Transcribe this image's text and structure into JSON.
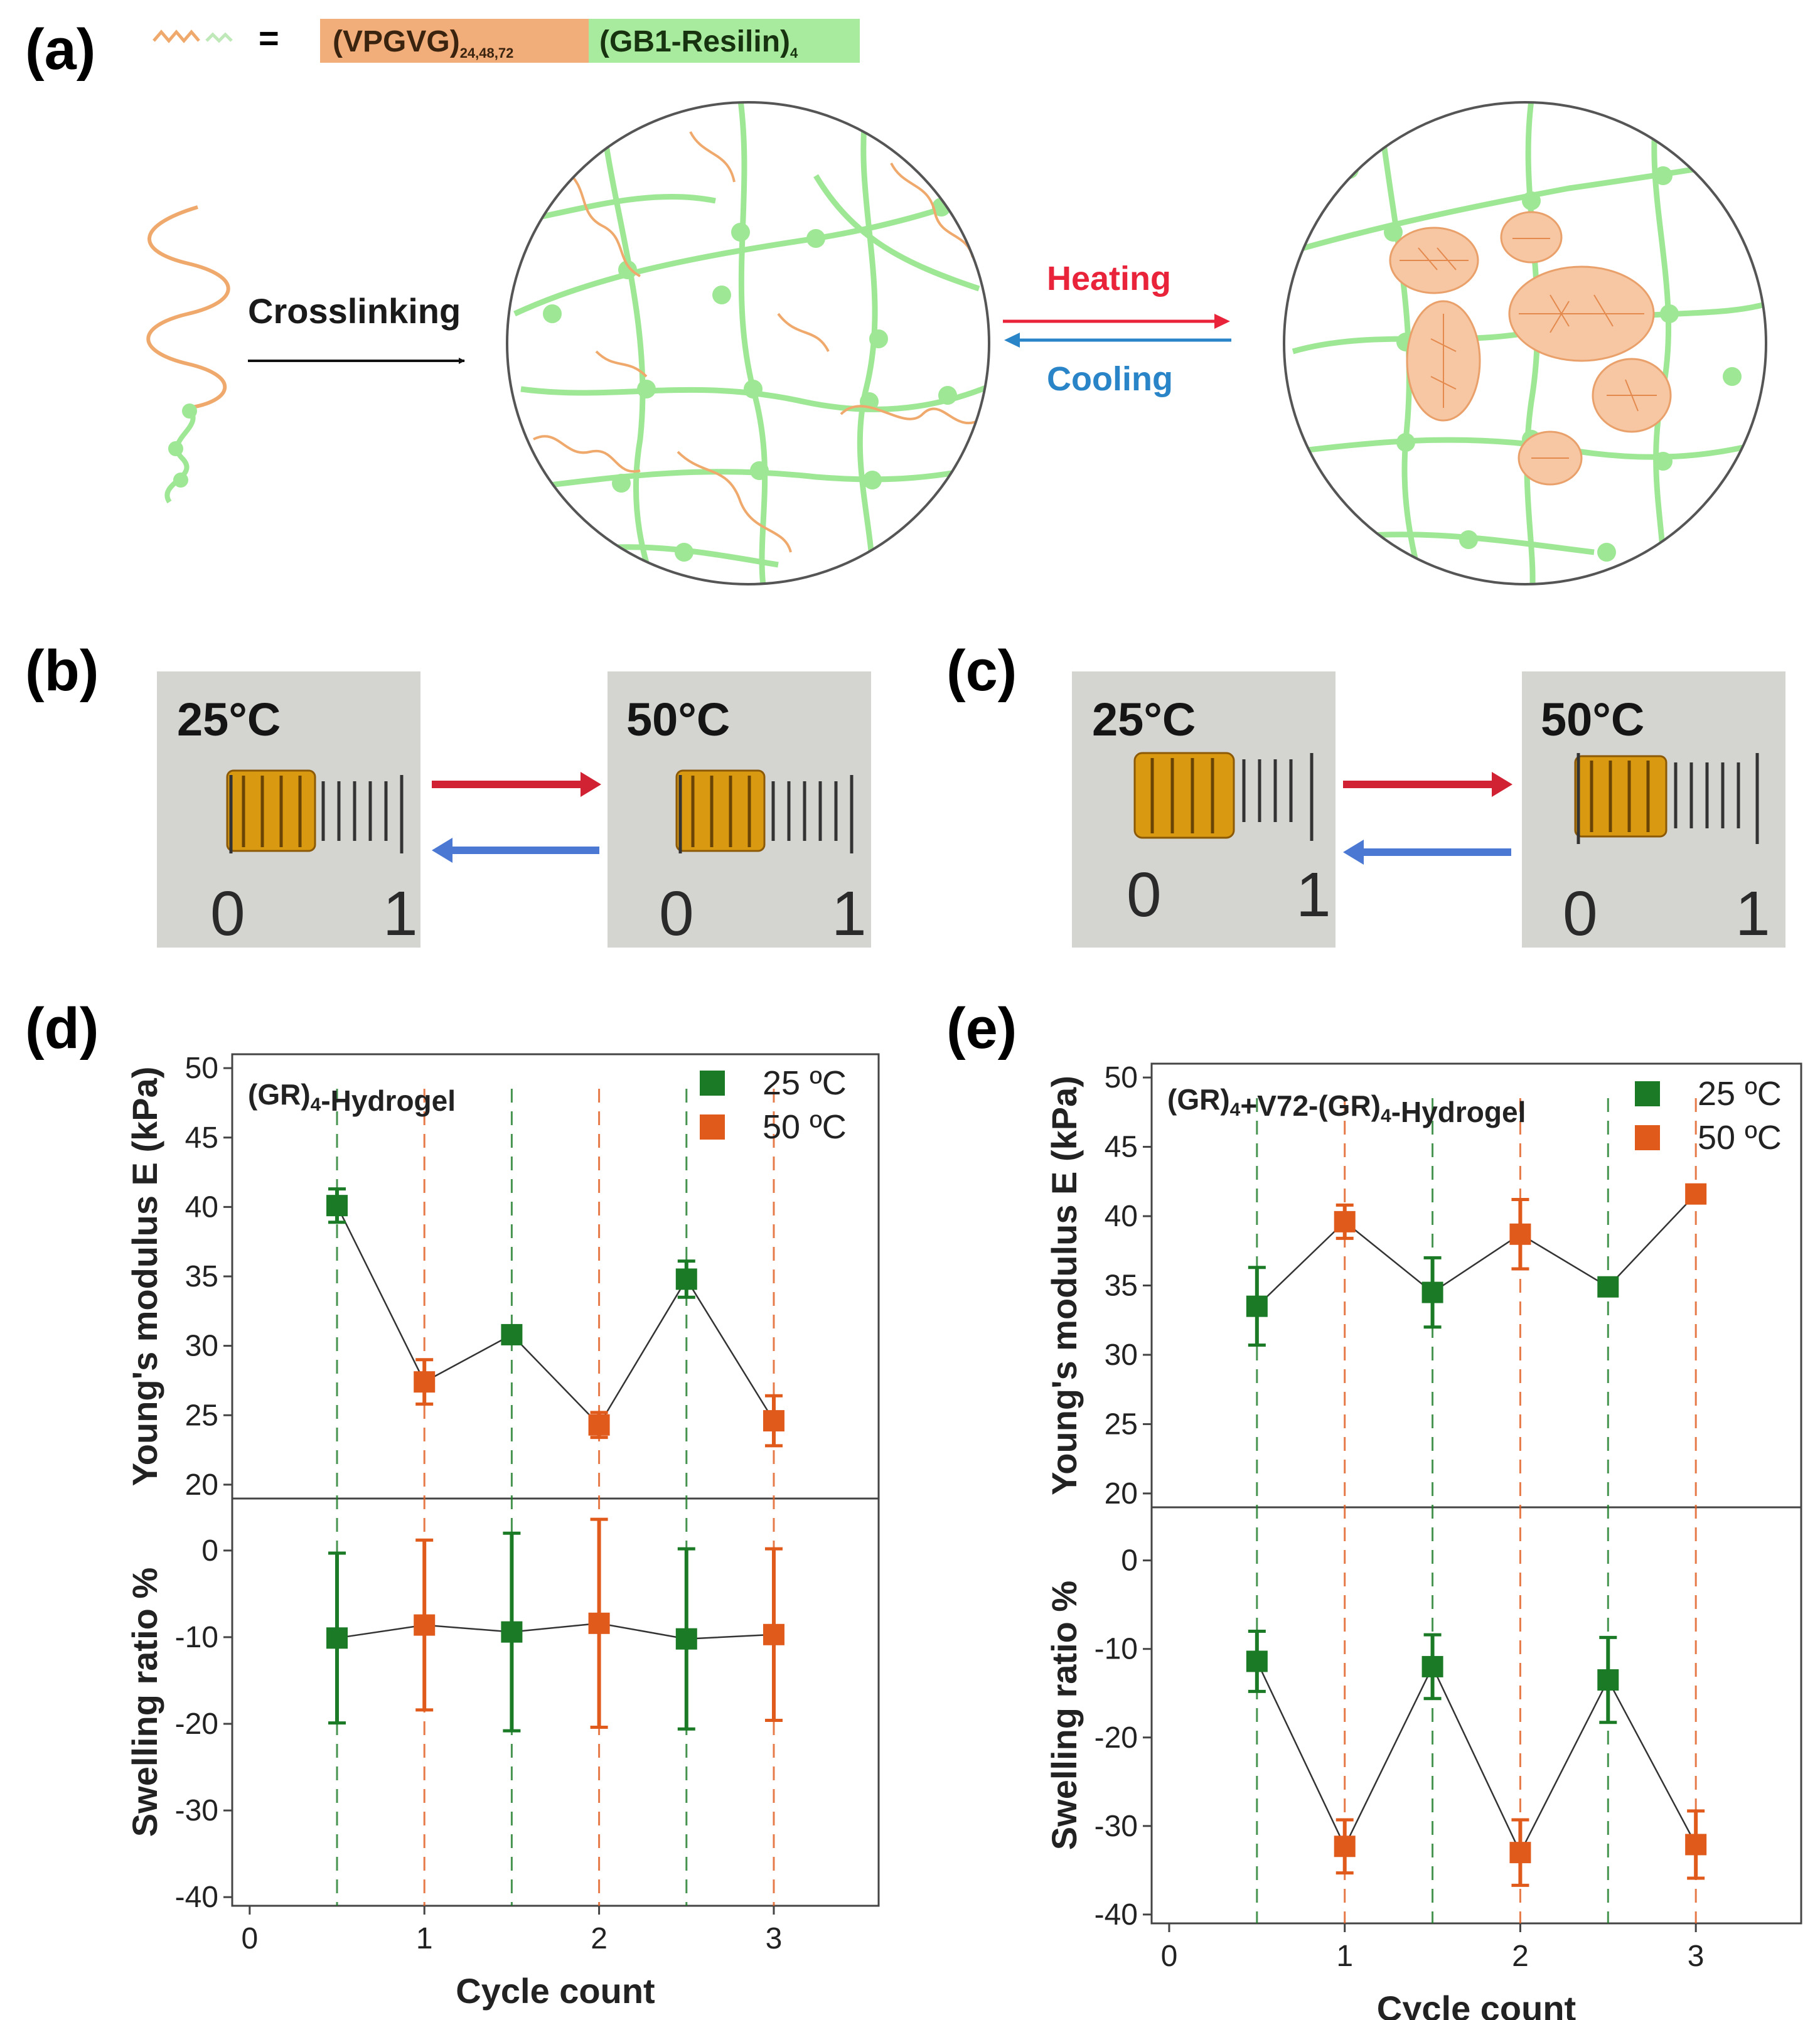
{
  "panel_labels": {
    "a": "(a)",
    "b": "(b)",
    "c": "(c)",
    "d": "(d)",
    "e": "(e)"
  },
  "schematic": {
    "equals": "=",
    "block_vpgvg": "(VPGVG)",
    "block_vpgvg_sub": "24,48,72",
    "block_gb1": "(GB1-Resilin)",
    "block_gb1_sub": "4",
    "crosslinking": "Crosslinking",
    "heating": "Heating",
    "cooling": "Cooling",
    "colors": {
      "vpgvg": "#f0a96c",
      "gb1": "#8fe08a",
      "heating": "#e8233a",
      "cooling": "#2a85c8",
      "net": "#9ee895",
      "aggregate": "#f6c7a2"
    }
  },
  "photos": {
    "b": {
      "left_temp": "25°C",
      "right_temp": "50°C",
      "zero": "0",
      "one": "1"
    },
    "c": {
      "left_temp": "25°C",
      "right_temp": "50°C",
      "zero": "0",
      "one": "1"
    },
    "arrow_colors": {
      "heat": "#d12233",
      "cool": "#4b78d2"
    }
  },
  "chart_data": [
    {
      "panel": "d",
      "title": "(GR)4-Hydrogel",
      "xlabel": "Cycle count",
      "x_ticks": [
        "0",
        "1",
        "2",
        "3"
      ],
      "xlim": [
        -0.1,
        3.6
      ],
      "legend": [
        {
          "label": "25 ºC",
          "color": "#1a7a25"
        },
        {
          "label": "50 ºC",
          "color": "#e05a1c"
        }
      ],
      "top": {
        "type": "line",
        "ylabel": "Young's modulus E (kPa)",
        "ylim": [
          19,
          51
        ],
        "y_ticks": [
          20,
          25,
          30,
          35,
          40,
          45,
          50
        ],
        "x": [
          0.5,
          1,
          1.5,
          2,
          2.5,
          3
        ],
        "y": [
          40.1,
          27.4,
          30.8,
          24.3,
          34.8,
          24.6
        ],
        "err": [
          1.2,
          1.6,
          0.6,
          0.9,
          1.3,
          1.8
        ],
        "temp": [
          "25",
          "50",
          "25",
          "50",
          "25",
          "50"
        ]
      },
      "bottom": {
        "type": "line",
        "ylabel": "Swelling ratio %",
        "ylim": [
          -41,
          6
        ],
        "y_ticks": [
          -40,
          -30,
          -20,
          -10,
          0
        ],
        "x": [
          0.5,
          1,
          1.5,
          2,
          2.5,
          3
        ],
        "y": [
          -10.1,
          -8.6,
          -9.4,
          -8.4,
          -10.2,
          -9.7
        ],
        "err": [
          9.8,
          9.8,
          11.4,
          12.0,
          10.4,
          9.9
        ],
        "temp": [
          "25",
          "50",
          "25",
          "50",
          "25",
          "50"
        ]
      }
    },
    {
      "panel": "e",
      "title": "(GR)4+V72-(GR)4-Hydrogel",
      "xlabel": "Cycle count",
      "x_ticks": [
        "0",
        "1",
        "2",
        "3"
      ],
      "xlim": [
        -0.1,
        3.6
      ],
      "legend": [
        {
          "label": "25 ºC",
          "color": "#1a7a25"
        },
        {
          "label": "50 ºC",
          "color": "#e05a1c"
        }
      ],
      "top": {
        "type": "line",
        "ylabel": "Young's modulus E (kPa)",
        "ylim": [
          19,
          51
        ],
        "y_ticks": [
          20,
          25,
          30,
          35,
          40,
          45,
          50
        ],
        "x": [
          0.5,
          1,
          1.5,
          2,
          2.5,
          3
        ],
        "y": [
          33.5,
          39.6,
          34.5,
          38.7,
          34.9,
          41.6
        ],
        "err": [
          2.8,
          1.2,
          2.5,
          2.5,
          0.6,
          0.4
        ],
        "temp": [
          "25",
          "50",
          "25",
          "50",
          "25",
          "50"
        ]
      },
      "bottom": {
        "type": "line",
        "ylabel": "Swelling ratio %",
        "ylim": [
          -41,
          6
        ],
        "y_ticks": [
          -40,
          -30,
          -20,
          -10,
          0
        ],
        "x": [
          0.5,
          1,
          1.5,
          2,
          2.5,
          3
        ],
        "y": [
          -11.4,
          -32.3,
          -12.0,
          -33.0,
          -13.5,
          -32.1
        ],
        "err": [
          3.4,
          3.0,
          3.6,
          3.7,
          4.8,
          3.8
        ],
        "temp": [
          "25",
          "50",
          "25",
          "50",
          "25",
          "50"
        ]
      }
    }
  ]
}
